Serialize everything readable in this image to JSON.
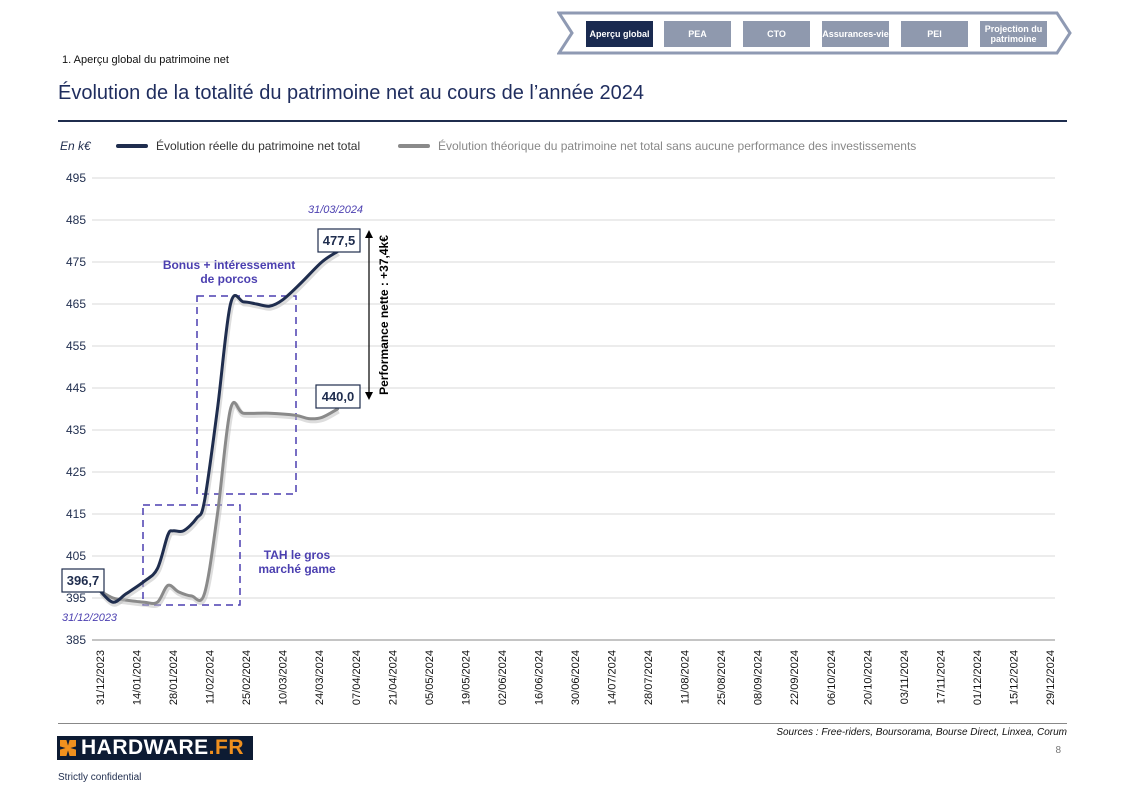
{
  "nav": {
    "tabs": [
      {
        "label": "Aperçu global",
        "active": true
      },
      {
        "label": "PEA"
      },
      {
        "label": "CTO"
      },
      {
        "label": "Assurances-vie"
      },
      {
        "label": "PEI"
      },
      {
        "label": "Projection du patrimoine"
      }
    ]
  },
  "header": {
    "section": "1. Aperçu global du patrimoine net",
    "title": "Évolution de la totalité du patrimoine net au cours de l’année 2024"
  },
  "footer": {
    "sources": "Sources : Free-riders, Boursorama, Bourse Direct, Linxea, Corum",
    "page": "8",
    "logo": "HARDWARE.FR",
    "logo_main": "HARDWARE",
    "logo_suffix": ".FR",
    "confidential": "Strictly confidential"
  },
  "chart_data": {
    "type": "line",
    "unit_label": "En k€",
    "ylim": [
      385,
      495
    ],
    "yticks": [
      495,
      485,
      475,
      465,
      455,
      445,
      435,
      425,
      415,
      405,
      395,
      385
    ],
    "xticks": [
      "31/12/2023",
      "14/01/2024",
      "28/01/2024",
      "11/02/2024",
      "25/02/2024",
      "10/03/2024",
      "24/03/2024",
      "07/04/2024",
      "21/04/2024",
      "05/05/2024",
      "19/05/2024",
      "02/06/2024",
      "16/06/2024",
      "30/06/2024",
      "14/07/2024",
      "28/07/2024",
      "11/08/2024",
      "25/08/2024",
      "08/09/2024",
      "22/09/2024",
      "06/10/2024",
      "20/10/2024",
      "03/11/2024",
      "17/11/2024",
      "01/12/2024",
      "15/12/2024",
      "29/12/2024"
    ],
    "grid": true,
    "series": [
      {
        "name": "Évolution réelle du patrimoine net total",
        "color": "#1f2d4e",
        "x_days": [
          0,
          5,
          10,
          17,
          22,
          26,
          28,
          32,
          37,
          40,
          45,
          50,
          55,
          60,
          65,
          70,
          77,
          85,
          91
        ],
        "values": [
          396.7,
          394,
          396,
          399,
          402,
          410,
          411,
          411,
          414,
          418,
          440,
          465,
          465.5,
          465,
          464.5,
          466,
          470,
          475,
          477.5
        ]
      },
      {
        "name": "Évolution théorique du patrimoine net total sans aucune performance des investissements",
        "color": "#8a8a8a",
        "x_days": [
          0,
          5,
          10,
          17,
          22,
          26,
          30,
          35,
          40,
          45,
          50,
          55,
          65,
          75,
          80,
          85,
          91
        ],
        "values": [
          396.7,
          395,
          394.5,
          394,
          394,
          398,
          396.5,
          395.5,
          396,
          415,
          440,
          439,
          439,
          438.5,
          437.7,
          438,
          440
        ]
      }
    ],
    "annotations": {
      "start_value": "396,7",
      "start_date": "31/12/2023",
      "end_real": "477,5",
      "end_theo": "440,0",
      "end_date": "31/03/2024",
      "performance": "Performance nette : +37,4k€",
      "bonus": "Bonus  + intéressement de porcos",
      "tah": "TAH  le gros marché game"
    },
    "accent": "#4b3fb0"
  }
}
